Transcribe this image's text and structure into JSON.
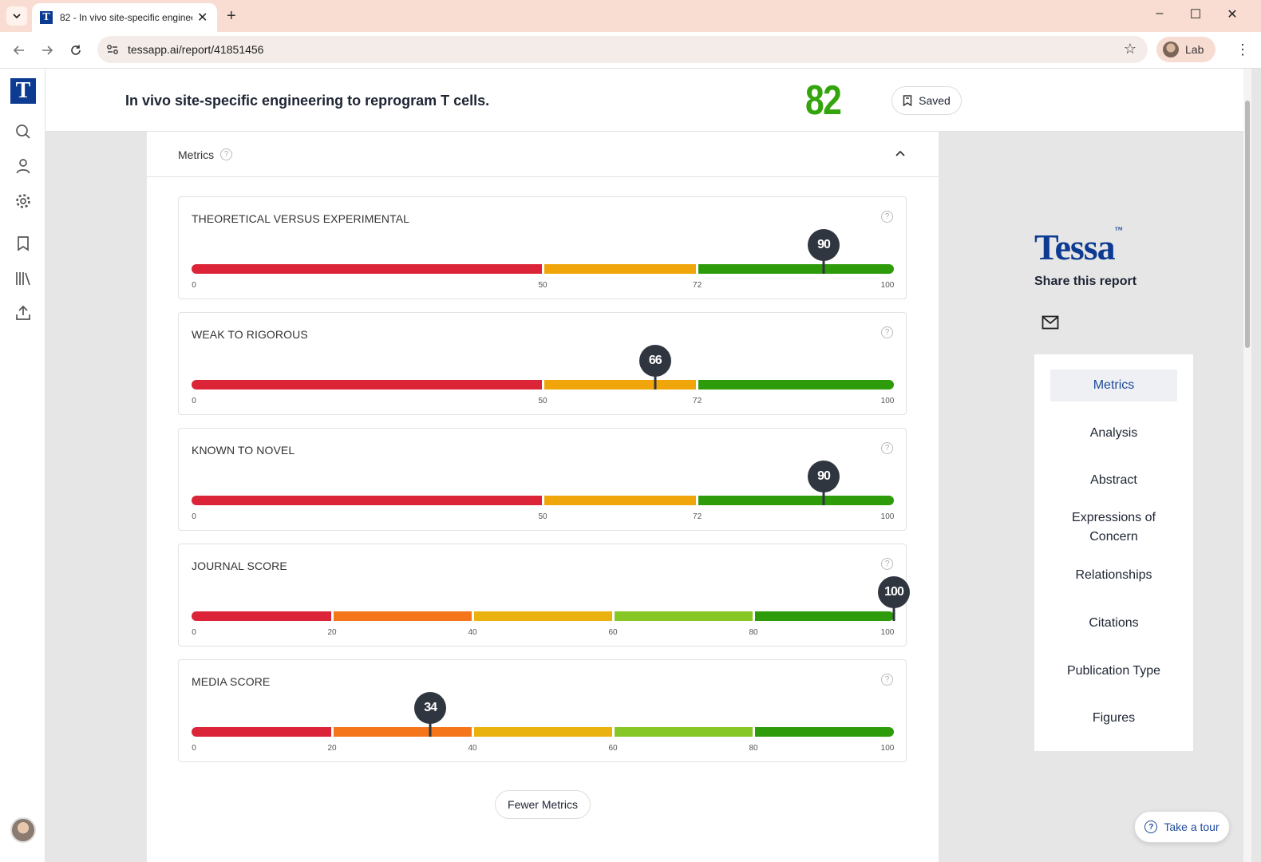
{
  "browser": {
    "tab_title": "82 - In vivo site-specific engineering to reprogram T cells.",
    "url": "tessapp.ai/report/41851456",
    "profile_label": "Lab",
    "favicon_letter": "T"
  },
  "app": {
    "logo_letter": "T",
    "sidebar_icons": [
      "search-icon",
      "user-icon",
      "gear-icon",
      "bookmark-icon",
      "library-icon",
      "upload-icon"
    ]
  },
  "header": {
    "paper_title": "In vivo site-specific engineering to reprogram T cells.",
    "score": "82",
    "score_color": "#34a40d",
    "saved_label": "Saved"
  },
  "metrics_panel": {
    "title": "Metrics",
    "fewer_label": "Fewer Metrics",
    "metrics": [
      {
        "title": "THEORETICAL VERSUS EXPERIMENTAL",
        "value": 90,
        "value_label": "90",
        "ticks": [
          "0",
          "50",
          "72",
          "100"
        ],
        "bands": [
          {
            "from": 0,
            "to": 50,
            "color": "#dc2438"
          },
          {
            "from": 50,
            "to": 72,
            "color": "#f0a50a"
          },
          {
            "from": 72,
            "to": 100,
            "color": "#2e9c0a"
          }
        ]
      },
      {
        "title": "WEAK TO RIGOROUS",
        "value": 66,
        "value_label": "66",
        "ticks": [
          "0",
          "50",
          "72",
          "100"
        ],
        "bands": [
          {
            "from": 0,
            "to": 50,
            "color": "#dc2438"
          },
          {
            "from": 50,
            "to": 72,
            "color": "#f0a50a"
          },
          {
            "from": 72,
            "to": 100,
            "color": "#2e9c0a"
          }
        ]
      },
      {
        "title": "KNOWN TO NOVEL",
        "value": 90,
        "value_label": "90",
        "ticks": [
          "0",
          "50",
          "72",
          "100"
        ],
        "bands": [
          {
            "from": 0,
            "to": 50,
            "color": "#dc2438"
          },
          {
            "from": 50,
            "to": 72,
            "color": "#f0a50a"
          },
          {
            "from": 72,
            "to": 100,
            "color": "#2e9c0a"
          }
        ]
      },
      {
        "title": "JOURNAL SCORE",
        "value": 100,
        "value_label": "100",
        "ticks": [
          "0",
          "20",
          "40",
          "60",
          "80",
          "100"
        ],
        "bands": [
          {
            "from": 0,
            "to": 20,
            "color": "#dc2438"
          },
          {
            "from": 20,
            "to": 40,
            "color": "#f5761a"
          },
          {
            "from": 40,
            "to": 60,
            "color": "#e9b20e"
          },
          {
            "from": 60,
            "to": 80,
            "color": "#86c726"
          },
          {
            "from": 80,
            "to": 100,
            "color": "#2e9c0a"
          }
        ]
      },
      {
        "title": "MEDIA SCORE",
        "value": 34,
        "value_label": "34",
        "ticks": [
          "0",
          "20",
          "40",
          "60",
          "80",
          "100"
        ],
        "bands": [
          {
            "from": 0,
            "to": 20,
            "color": "#dc2438"
          },
          {
            "from": 20,
            "to": 40,
            "color": "#f5761a"
          },
          {
            "from": 40,
            "to": 60,
            "color": "#e9b20e"
          },
          {
            "from": 60,
            "to": 80,
            "color": "#86c726"
          },
          {
            "from": 80,
            "to": 100,
            "color": "#2e9c0a"
          }
        ]
      }
    ]
  },
  "right": {
    "brand": "Tessa",
    "brand_mark": "™",
    "share_label": "Share this report",
    "toc": [
      {
        "label": "Metrics",
        "active": true
      },
      {
        "label": "Analysis"
      },
      {
        "label": "Abstract"
      },
      {
        "label": "Expressions of Concern"
      },
      {
        "label": "Relationships"
      },
      {
        "label": "Citations"
      },
      {
        "label": "Publication Type"
      },
      {
        "label": "Figures"
      }
    ],
    "tour_label": "Take a tour"
  },
  "colors": {
    "brand_blue": "#0d3b91",
    "pin": "#2f3640"
  }
}
